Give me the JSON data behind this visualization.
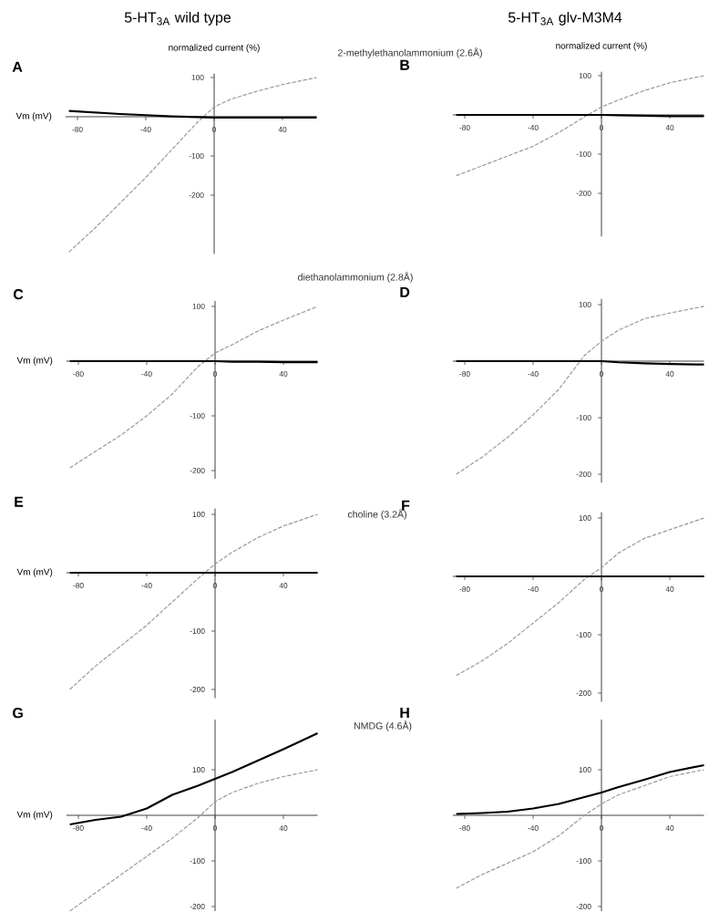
{
  "chart_data": [
    {
      "type": "line",
      "title": "A",
      "subtitle": "5-HT$_{3A}$ wild type",
      "ylabel": "normalized current (%)",
      "xlabel": "Vm (mV)",
      "annotations": [
        "2-methylethanolammonium (2.6Å)"
      ],
      "xlim": [
        -87,
        60
      ],
      "ylim": [
        -350,
        110
      ],
      "xticks": [
        -80,
        -40,
        0,
        40
      ],
      "yticks": [
        -200,
        -100,
        100
      ],
      "series": [
        {
          "color": "#999999",
          "line_style": "dashed",
          "x": [
            -85,
            -70,
            -55,
            -40,
            -25,
            -10,
            0,
            10,
            25,
            40,
            60
          ],
          "values": [
            -345,
            -285,
            -220,
            -155,
            -85,
            -15,
            25,
            45,
            65,
            82,
            100
          ]
        },
        {
          "color": "#000000",
          "line_style": "solid",
          "x": [
            -85,
            -70,
            -55,
            -40,
            -25,
            -10,
            0,
            10,
            25,
            40,
            60
          ],
          "values": [
            15,
            11,
            7,
            4,
            1,
            -1,
            -2,
            -2,
            -2,
            -2,
            -2
          ]
        }
      ]
    },
    {
      "type": "line",
      "title": "B",
      "subtitle": "5-HT$_{3A}$ glv-M3M4",
      "ylabel": "normalized current (%)",
      "xlim": [
        -87,
        60
      ],
      "ylim": [
        -310,
        110
      ],
      "xticks": [
        -80,
        -40,
        0,
        40
      ],
      "yticks": [
        -200,
        -100,
        100
      ],
      "series": [
        {
          "color": "#999999",
          "line_style": "dashed",
          "x": [
            -85,
            -70,
            -55,
            -40,
            -25,
            -10,
            0,
            10,
            25,
            40,
            60
          ],
          "values": [
            -155,
            -130,
            -105,
            -80,
            -45,
            -5,
            20,
            38,
            62,
            82,
            100
          ]
        },
        {
          "color": "#000000",
          "line_style": "solid",
          "x": [
            -85,
            -70,
            -55,
            -40,
            -25,
            -10,
            0,
            10,
            25,
            40,
            60
          ],
          "values": [
            0,
            0,
            0,
            0,
            0,
            0,
            0,
            -1,
            -2,
            -3,
            -3
          ]
        }
      ]
    },
    {
      "type": "line",
      "title": "C",
      "xlabel": "Vm (mV)",
      "annotations": [
        "diethanolammonium (2.8Å)"
      ],
      "xlim": [
        -87,
        60
      ],
      "ylim": [
        -215,
        110
      ],
      "xticks": [
        -80,
        -40,
        0,
        40
      ],
      "yticks": [
        -200,
        -100,
        100
      ],
      "series": [
        {
          "color": "#999999",
          "line_style": "dashed",
          "x": [
            -85,
            -70,
            -55,
            -40,
            -25,
            -10,
            0,
            10,
            25,
            40,
            60
          ],
          "values": [
            -195,
            -165,
            -135,
            -100,
            -60,
            -10,
            15,
            30,
            55,
            75,
            100
          ]
        },
        {
          "color": "#000000",
          "line_style": "solid",
          "x": [
            -85,
            -70,
            -55,
            -40,
            -25,
            -10,
            0,
            10,
            25,
            40,
            60
          ],
          "values": [
            0,
            0,
            0,
            0,
            0,
            0,
            0,
            -1,
            -1,
            -2,
            -2
          ]
        }
      ]
    },
    {
      "type": "line",
      "title": "D",
      "xlim": [
        -87,
        60
      ],
      "ylim": [
        -215,
        110
      ],
      "xticks": [
        -80,
        -40,
        0,
        40
      ],
      "yticks": [
        -200,
        -100,
        100
      ],
      "series": [
        {
          "color": "#999999",
          "line_style": "dashed",
          "x": [
            -85,
            -70,
            -55,
            -40,
            -25,
            -10,
            0,
            10,
            25,
            40,
            60
          ],
          "values": [
            -200,
            -170,
            -135,
            -95,
            -50,
            10,
            35,
            55,
            75,
            85,
            97
          ]
        },
        {
          "color": "#000000",
          "line_style": "solid",
          "x": [
            -85,
            -70,
            -55,
            -40,
            -25,
            -10,
            0,
            10,
            25,
            40,
            60
          ],
          "values": [
            0,
            0,
            0,
            0,
            0,
            0,
            0,
            -2,
            -4,
            -5,
            -6
          ]
        }
      ]
    },
    {
      "type": "line",
      "title": "E",
      "xlabel": "Vm (mV)",
      "annotations": [
        "choline (3.2Å)"
      ],
      "xlim": [
        -87,
        60
      ],
      "ylim": [
        -215,
        110
      ],
      "xticks": [
        -80,
        -40,
        0,
        40
      ],
      "yticks": [
        -200,
        -100,
        100
      ],
      "series": [
        {
          "color": "#999999",
          "line_style": "dashed",
          "x": [
            -85,
            -70,
            -55,
            -40,
            -25,
            -10,
            0,
            10,
            25,
            40,
            60
          ],
          "values": [
            -200,
            -160,
            -125,
            -90,
            -50,
            -10,
            15,
            35,
            60,
            80,
            100
          ]
        },
        {
          "color": "#000000",
          "line_style": "solid",
          "x": [
            -85,
            -70,
            -55,
            -40,
            -25,
            -10,
            0,
            10,
            25,
            40,
            60
          ],
          "values": [
            0,
            0,
            0,
            0,
            0,
            0,
            0,
            0,
            0,
            0,
            0
          ]
        }
      ]
    },
    {
      "type": "line",
      "title": "F",
      "xlim": [
        -87,
        60
      ],
      "ylim": [
        -215,
        110
      ],
      "xticks": [
        -80,
        -40,
        0,
        40
      ],
      "yticks": [
        -200,
        -100,
        100
      ],
      "series": [
        {
          "color": "#999999",
          "line_style": "dashed",
          "x": [
            -85,
            -70,
            -55,
            -40,
            -25,
            -10,
            0,
            10,
            25,
            40,
            60
          ],
          "values": [
            -170,
            -145,
            -115,
            -80,
            -45,
            -5,
            15,
            40,
            65,
            80,
            100
          ]
        },
        {
          "color": "#000000",
          "line_style": "solid",
          "x": [
            -85,
            -70,
            -55,
            -40,
            -25,
            -10,
            0,
            10,
            25,
            40,
            60
          ],
          "values": [
            0,
            0,
            0,
            0,
            0,
            0,
            0,
            0,
            0,
            0,
            0
          ]
        }
      ]
    },
    {
      "type": "line",
      "title": "G",
      "xlabel": "Vm (mV)",
      "annotations": [
        "NMDG (4.6Å)"
      ],
      "xlim": [
        -87,
        60
      ],
      "ylim": [
        -210,
        210
      ],
      "xticks": [
        -80,
        -40,
        0,
        40
      ],
      "yticks": [
        -200,
        -100,
        100
      ],
      "series": [
        {
          "color": "#999999",
          "line_style": "dashed",
          "x": [
            -85,
            -70,
            -55,
            -40,
            -25,
            -10,
            0,
            10,
            25,
            40,
            60
          ],
          "values": [
            -210,
            -170,
            -130,
            -90,
            -50,
            -5,
            30,
            50,
            70,
            85,
            100
          ]
        },
        {
          "color": "#000000",
          "line_style": "solid",
          "x": [
            -85,
            -70,
            -55,
            -40,
            -25,
            -10,
            0,
            10,
            25,
            40,
            60
          ],
          "values": [
            -20,
            -10,
            -3,
            15,
            45,
            65,
            80,
            95,
            120,
            145,
            180
          ]
        }
      ]
    },
    {
      "type": "line",
      "title": "H",
      "xlim": [
        -87,
        60
      ],
      "ylim": [
        -210,
        210
      ],
      "xticks": [
        -80,
        -40,
        0,
        40
      ],
      "yticks": [
        -200,
        -100,
        100
      ],
      "series": [
        {
          "color": "#999999",
          "line_style": "dashed",
          "x": [
            -85,
            -70,
            -55,
            -40,
            -25,
            -10,
            0,
            10,
            25,
            40,
            60
          ],
          "values": [
            -160,
            -130,
            -105,
            -80,
            -45,
            0,
            25,
            45,
            65,
            85,
            100
          ]
        },
        {
          "color": "#000000",
          "line_style": "solid",
          "x": [
            -85,
            -70,
            -55,
            -40,
            -25,
            -10,
            0,
            10,
            25,
            40,
            60
          ],
          "values": [
            3,
            5,
            8,
            15,
            25,
            40,
            50,
            62,
            78,
            95,
            110
          ]
        }
      ]
    }
  ]
}
